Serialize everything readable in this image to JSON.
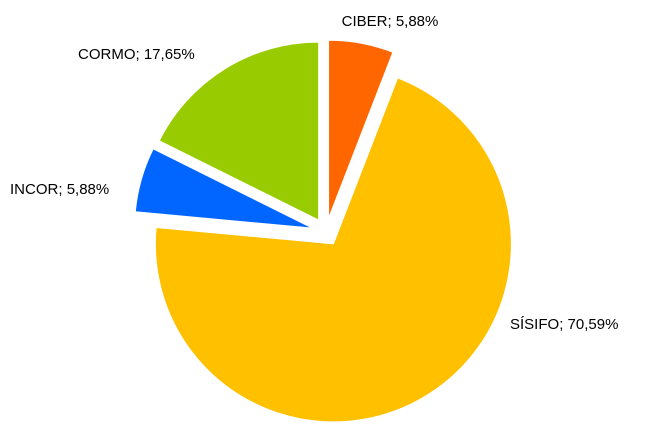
{
  "chart_data": {
    "type": "pie",
    "categories": [
      "CIBER",
      "SÍSIFO",
      "INCOR",
      "CORMO"
    ],
    "values": [
      5.88,
      70.59,
      5.88,
      17.65
    ],
    "value_labels": [
      "5,88%",
      "70,59%",
      "5,88%",
      "17,65%"
    ],
    "label_separator": "; ",
    "colors": [
      "#ff6600",
      "#ffc000",
      "#0066ff",
      "#99cc00"
    ],
    "exploded": true
  }
}
